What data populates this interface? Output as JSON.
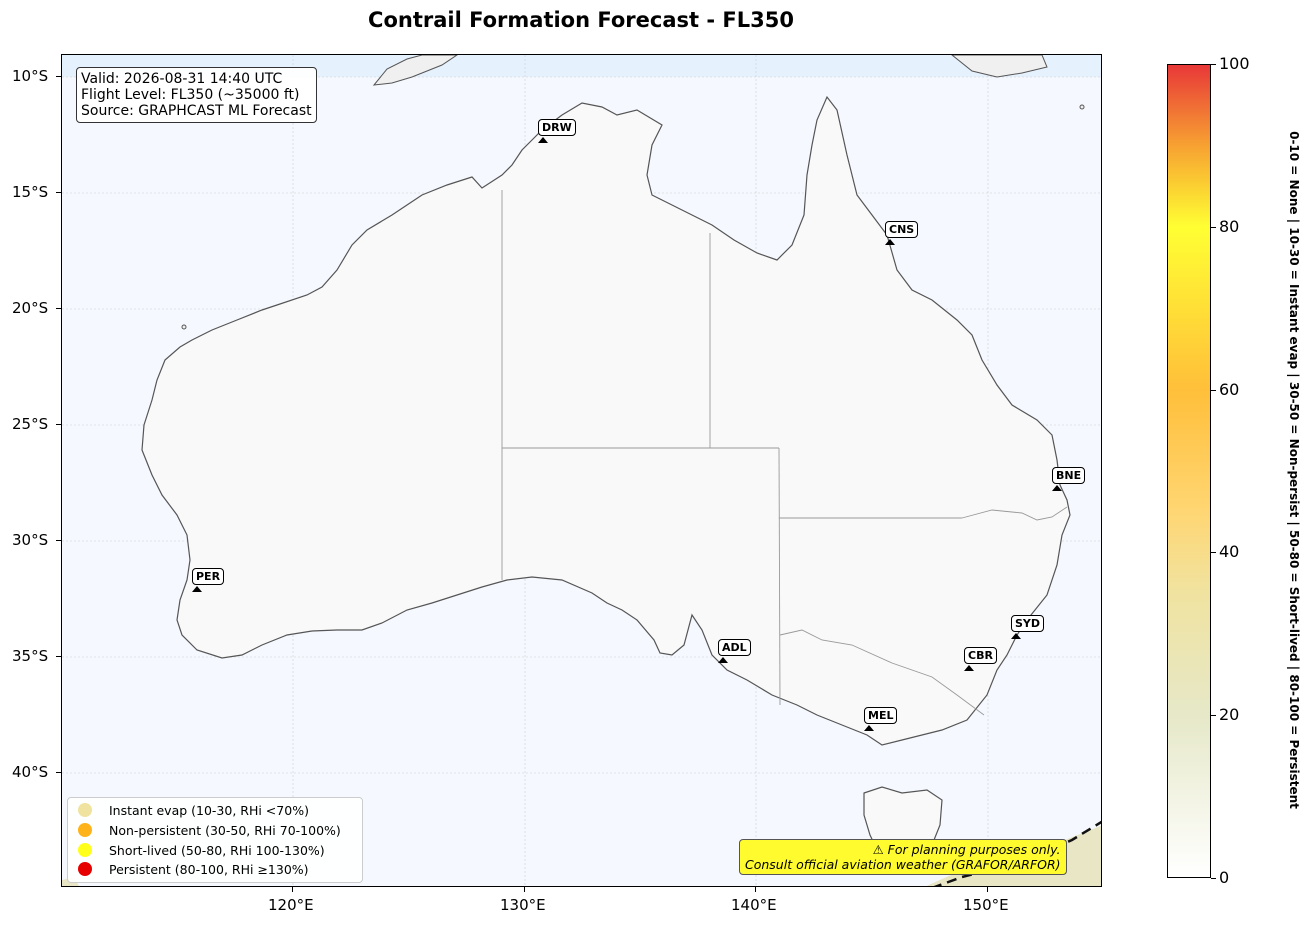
{
  "title": "Contrail Formation Forecast - FL350",
  "info_box": {
    "line1": "Valid: 2026-08-31 14:40 UTC",
    "line2": "Flight Level: FL350 (~35000 ft)",
    "line3": "Source: GRAPHCAST ML Forecast"
  },
  "lat_labels": [
    "10°S",
    "15°S",
    "20°S",
    "25°S",
    "30°S",
    "35°S",
    "40°S"
  ],
  "lon_labels": [
    "120°E",
    "130°E",
    "140°E",
    "150°E"
  ],
  "cities": [
    {
      "code": "DRW"
    },
    {
      "code": "CNS"
    },
    {
      "code": "BNE"
    },
    {
      "code": "PER"
    },
    {
      "code": "ADL"
    },
    {
      "code": "SYD"
    },
    {
      "code": "CBR"
    },
    {
      "code": "MEL"
    }
  ],
  "legend": [
    {
      "label": "Instant evap (10-30, RHi <70%)",
      "color": "#f0e3a0"
    },
    {
      "label": "Non-persistent (30-50, RHi 70-100%)",
      "color": "#ffb31a"
    },
    {
      "label": "Short-lived (50-80, RHi 100-130%)",
      "color": "#ffff1a"
    },
    {
      "label": "Persistent (80-100, RHi ≥130%)",
      "color": "#e60000"
    }
  ],
  "disclaimer": {
    "line1": "⚠ For planning purposes only.",
    "line2": "Consult official aviation weather (GRAFOR/ARFOR)"
  },
  "colorbar": {
    "ticks": [
      "0",
      "20",
      "40",
      "60",
      "80",
      "100"
    ],
    "caption": "0-10 = None  |  10-30 = Instant evap  |  30-50 = Non-persist  |  50-80 = Short-lived  |  80-100 = Persistent"
  },
  "colors": {
    "ocean": "#f5f9ff",
    "land": "#f9f9f9",
    "coast": "#555555",
    "borders": "#999999"
  }
}
